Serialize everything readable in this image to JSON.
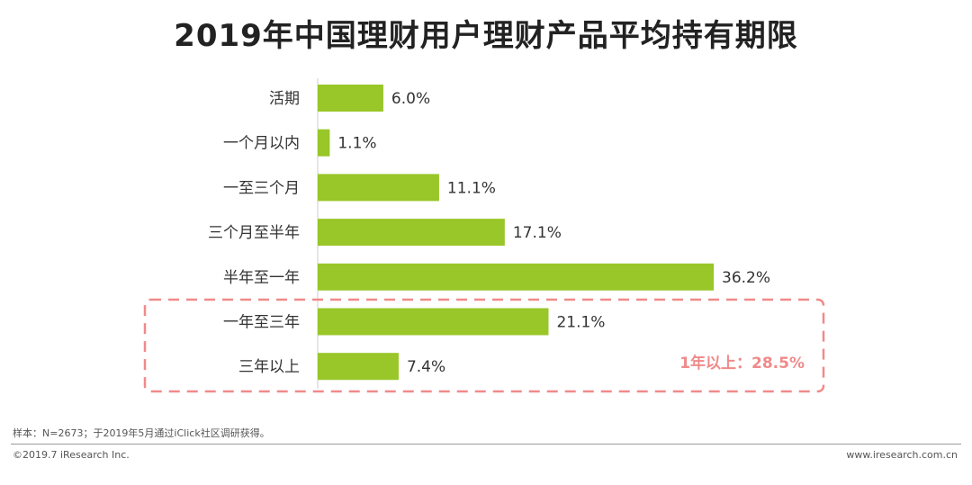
{
  "chart_data": {
    "type": "bar",
    "orientation": "horizontal",
    "title": "2019年中国理财用户理财产品平均持有期限",
    "categories": [
      "活期",
      "一个月以内",
      "一至三个月",
      "三个月至半年",
      "半年至一年",
      "一年至三年",
      "三年以上"
    ],
    "values": [
      6.0,
      1.1,
      11.1,
      17.1,
      36.2,
      21.1,
      7.4
    ],
    "value_labels": [
      "6.0%",
      "1.1%",
      "11.1%",
      "17.1%",
      "36.2%",
      "21.1%",
      "7.4%"
    ],
    "unit": "%",
    "xlim": [
      0,
      40
    ],
    "grid": false,
    "bar_color": "#99c628",
    "annotation": {
      "text": "1年以上：28.5%",
      "highlights": [
        "一年至三年",
        "三年以上"
      ],
      "color": "#f08a8a"
    }
  },
  "footer": {
    "note": "样本：N=2673；于2019年5月通过iClick社区调研获得。",
    "copyright": "©2019.7 iResearch Inc.",
    "website": "www.iresearch.com.cn"
  }
}
